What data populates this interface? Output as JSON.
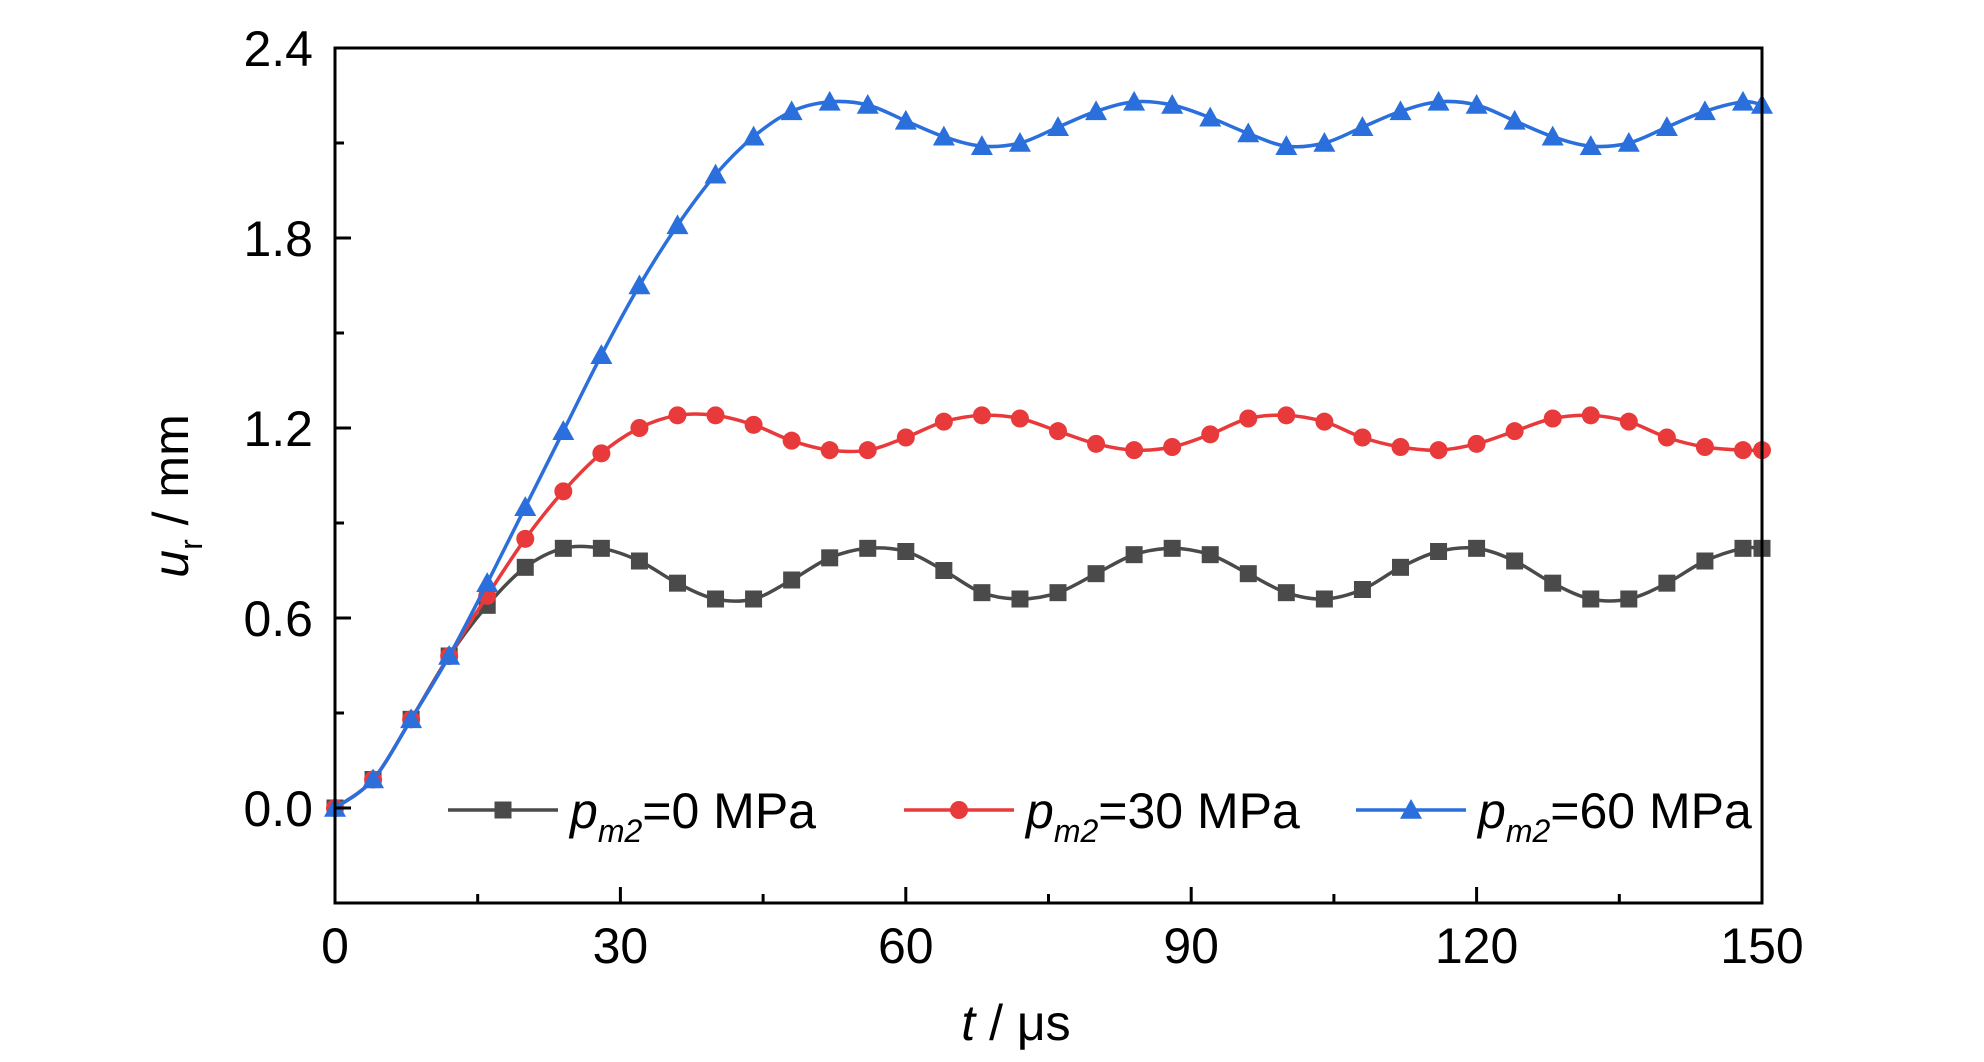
{
  "chart_data": {
    "type": "line",
    "xlabel": {
      "var": "t",
      "unit": " / μs"
    },
    "ylabel": {
      "var": "u",
      "sub": "r",
      "unit": " / mm"
    },
    "xlim": [
      0,
      150
    ],
    "ylim": [
      -0.3,
      2.4
    ],
    "x_ticks": [
      0,
      30,
      60,
      90,
      120,
      150
    ],
    "x_tick_labels": [
      "0",
      "30",
      "60",
      "90",
      "120",
      "150"
    ],
    "y_ticks": [
      0.0,
      0.6,
      1.2,
      1.8,
      2.4
    ],
    "y_tick_labels": [
      "0.0",
      "0.6",
      "1.2",
      "1.8",
      "2.4"
    ],
    "grid": false,
    "legend_position": "bottom",
    "x": [
      0,
      4,
      8,
      12,
      16,
      20,
      24,
      28,
      32,
      36,
      40,
      44,
      48,
      52,
      56,
      60,
      64,
      68,
      72,
      76,
      80,
      84,
      88,
      92,
      96,
      100,
      104,
      108,
      112,
      116,
      120,
      124,
      128,
      132,
      136,
      140,
      144,
      148,
      150
    ],
    "series": [
      {
        "name": "p_m2=0 MPa",
        "legend": {
          "var": "p",
          "sub": "m2",
          "rest": "=0 MPa"
        },
        "color": "#4a4a4a",
        "marker": "square",
        "values": [
          0,
          0.09,
          0.28,
          0.48,
          0.64,
          0.76,
          0.82,
          0.82,
          0.78,
          0.71,
          0.66,
          0.66,
          0.72,
          0.79,
          0.82,
          0.81,
          0.75,
          0.68,
          0.66,
          0.68,
          0.74,
          0.8,
          0.82,
          0.8,
          0.74,
          0.68,
          0.66,
          0.69,
          0.76,
          0.81,
          0.82,
          0.78,
          0.71,
          0.66,
          0.66,
          0.71,
          0.78,
          0.82,
          0.82
        ]
      },
      {
        "name": "p_m2=30 MPa",
        "legend": {
          "var": "p",
          "sub": "m2",
          "rest": "=30 MPa"
        },
        "color": "#e8393b",
        "marker": "circle",
        "values": [
          0,
          0.09,
          0.28,
          0.48,
          0.67,
          0.85,
          1.0,
          1.12,
          1.2,
          1.24,
          1.24,
          1.21,
          1.16,
          1.13,
          1.13,
          1.17,
          1.22,
          1.24,
          1.23,
          1.19,
          1.15,
          1.13,
          1.14,
          1.18,
          1.23,
          1.24,
          1.22,
          1.17,
          1.14,
          1.13,
          1.15,
          1.19,
          1.23,
          1.24,
          1.22,
          1.17,
          1.14,
          1.13,
          1.13
        ]
      },
      {
        "name": "p_m2=60 MPa",
        "legend": {
          "var": "p",
          "sub": "m2",
          "rest": "=60 MPa"
        },
        "color": "#2a6fdb",
        "marker": "triangle",
        "values": [
          0,
          0.09,
          0.28,
          0.48,
          0.71,
          0.95,
          1.19,
          1.43,
          1.65,
          1.84,
          2.0,
          2.12,
          2.2,
          2.23,
          2.22,
          2.17,
          2.12,
          2.09,
          2.1,
          2.15,
          2.2,
          2.23,
          2.22,
          2.18,
          2.13,
          2.09,
          2.1,
          2.15,
          2.2,
          2.23,
          2.22,
          2.17,
          2.12,
          2.09,
          2.1,
          2.15,
          2.2,
          2.23,
          2.22
        ]
      }
    ]
  }
}
